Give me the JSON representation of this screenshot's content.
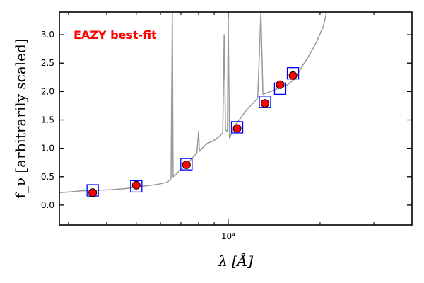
{
  "chart_data": {
    "type": "scatter",
    "title": "",
    "annotation": "EAZY best-fit",
    "annotation_color": "#ff0000",
    "xlabel": "λ [Å]",
    "ylabel": "f_ν [arbitrarily scaled]",
    "xscale": "log",
    "xlim": [
      2800,
      40000
    ],
    "ylim": [
      -0.35,
      3.4
    ],
    "yticks": [
      0.0,
      0.5,
      1.0,
      1.5,
      2.0,
      2.5,
      3.0
    ],
    "ytick_labels": [
      "0.0",
      "0.5",
      "1.0",
      "1.5",
      "2.0",
      "2.5",
      "3.0"
    ],
    "xtick_label": "10⁴",
    "xtick_major": 10000,
    "xticks_minor": [
      3000,
      4000,
      5000,
      6000,
      7000,
      8000,
      9000,
      20000,
      30000
    ],
    "grid": false,
    "series": [
      {
        "kind": "template",
        "color": "#999999",
        "points": [
          [
            2800,
            0.22
          ],
          [
            3000,
            0.23
          ],
          [
            3300,
            0.25
          ],
          [
            3700,
            0.26
          ],
          [
            4100,
            0.27
          ],
          [
            4600,
            0.29
          ],
          [
            5200,
            0.33
          ],
          [
            5800,
            0.36
          ],
          [
            6300,
            0.4
          ],
          [
            6400,
            0.43
          ],
          [
            6500,
            0.47
          ],
          [
            6560,
            3.4
          ],
          [
            6600,
            0.5
          ],
          [
            6800,
            0.56
          ],
          [
            7200,
            0.68
          ],
          [
            7500,
            0.78
          ],
          [
            7900,
            0.92
          ],
          [
            8000,
            1.3
          ],
          [
            8050,
            0.95
          ],
          [
            8500,
            1.08
          ],
          [
            9000,
            1.14
          ],
          [
            9400,
            1.22
          ],
          [
            9600,
            1.27
          ],
          [
            9700,
            3.0
          ],
          [
            9800,
            1.32
          ],
          [
            9950,
            1.3
          ],
          [
            10000,
            3.3
          ],
          [
            10100,
            1.18
          ],
          [
            10600,
            1.42
          ],
          [
            11500,
            1.68
          ],
          [
            12500,
            1.88
          ],
          [
            12800,
            3.4
          ],
          [
            13000,
            1.95
          ],
          [
            14500,
            2.05
          ],
          [
            15500,
            2.1
          ],
          [
            16500,
            2.22
          ],
          [
            17500,
            2.45
          ],
          [
            18500,
            2.65
          ],
          [
            19500,
            2.88
          ],
          [
            20500,
            3.15
          ],
          [
            21000,
            3.4
          ]
        ]
      },
      {
        "kind": "model_fluxes",
        "marker": "square",
        "color": "#0000ff",
        "points": [
          [
            3600,
            0.26
          ],
          [
            5000,
            0.33
          ],
          [
            7300,
            0.72
          ],
          [
            10700,
            1.37
          ],
          [
            13200,
            1.82
          ],
          [
            14800,
            2.05
          ],
          [
            16300,
            2.32
          ]
        ]
      },
      {
        "kind": "observed_fluxes",
        "marker": "circle",
        "color": "#ff0000",
        "points": [
          [
            3600,
            0.22
          ],
          [
            5000,
            0.35
          ],
          [
            7300,
            0.71
          ],
          [
            10700,
            1.35
          ],
          [
            13200,
            1.79
          ],
          [
            14800,
            2.12
          ],
          [
            16300,
            2.28
          ]
        ]
      }
    ]
  }
}
